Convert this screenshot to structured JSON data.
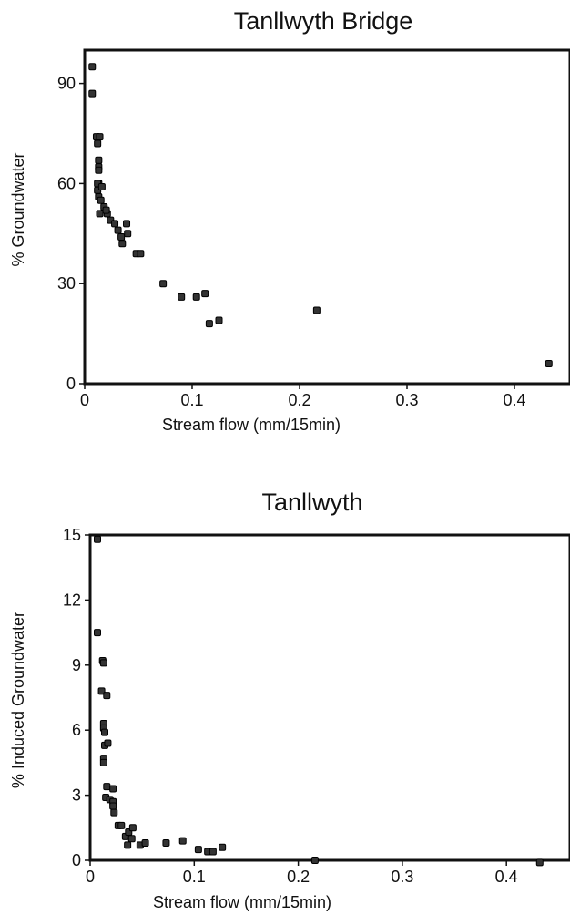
{
  "chart_data": [
    {
      "type": "scatter",
      "title": "Tanllwyth Bridge",
      "xlabel": "Stream flow (mm/15min)",
      "ylabel": "% Groundwater",
      "xlim": [
        0,
        0.45
      ],
      "ylim": [
        0,
        100
      ],
      "xticks": [
        0,
        0.1,
        0.2,
        0.3,
        0.4
      ],
      "xtick_labels": [
        "0",
        "0.1",
        "0.2",
        "0.3",
        "0.4"
      ],
      "yticks": [
        0,
        30,
        60,
        90
      ],
      "ytick_labels": [
        "0",
        "30",
        "60",
        "90"
      ],
      "grid": false,
      "series": [
        {
          "x": [
            0.007,
            0.007,
            0.011,
            0.012,
            0.014,
            0.013,
            0.013,
            0.013,
            0.013,
            0.012,
            0.012,
            0.013,
            0.015,
            0.016,
            0.014,
            0.018,
            0.021,
            0.02,
            0.024,
            0.028,
            0.031,
            0.035,
            0.034,
            0.039,
            0.04,
            0.048,
            0.052,
            0.073,
            0.09,
            0.104,
            0.112,
            0.116,
            0.125,
            0.216,
            0.432
          ],
          "y": [
            95,
            87,
            74,
            72,
            74,
            67,
            65,
            64,
            60,
            60,
            58,
            56,
            55,
            59,
            51,
            53,
            51,
            52,
            49,
            48,
            46,
            42,
            44,
            48,
            45,
            39,
            39,
            30,
            26,
            26,
            27,
            18,
            19,
            22,
            6
          ]
        }
      ]
    },
    {
      "type": "scatter",
      "title": "Tanllwyth",
      "xlabel": "Stream flow (mm/15min)",
      "ylabel": "% Induced Groundwater",
      "xlim": [
        0,
        0.45
      ],
      "ylim": [
        0,
        15
      ],
      "xticks": [
        0,
        0.1,
        0.2,
        0.3,
        0.4
      ],
      "xtick_labels": [
        "0",
        "0.1",
        "0.2",
        "0.3",
        "0.4"
      ],
      "yticks": [
        0,
        3,
        6,
        9,
        12,
        15
      ],
      "ytick_labels": [
        "0",
        "3",
        "6",
        "9",
        "12",
        "15"
      ],
      "grid": false,
      "series": [
        {
          "x": [
            0.007,
            0.007,
            0.011,
            0.012,
            0.013,
            0.016,
            0.013,
            0.013,
            0.014,
            0.014,
            0.013,
            0.017,
            0.013,
            0.016,
            0.015,
            0.022,
            0.019,
            0.022,
            0.023,
            0.022,
            0.027,
            0.03,
            0.034,
            0.037,
            0.036,
            0.041,
            0.04,
            0.048,
            0.053,
            0.073,
            0.089,
            0.104,
            0.113,
            0.118,
            0.127,
            0.216,
            0.432
          ],
          "y": [
            14.8,
            10.5,
            7.8,
            9.2,
            9.1,
            7.6,
            6.3,
            6.1,
            5.9,
            5.3,
            4.7,
            5.4,
            4.5,
            3.4,
            2.9,
            3.3,
            2.8,
            2.7,
            2.2,
            2.5,
            1.6,
            1.6,
            1.1,
            1.3,
            0.7,
            1.5,
            1.0,
            0.7,
            0.8,
            0.8,
            0.9,
            0.5,
            0.4,
            0.4,
            0.6,
            0.0,
            -0.1
          ]
        }
      ]
    }
  ]
}
